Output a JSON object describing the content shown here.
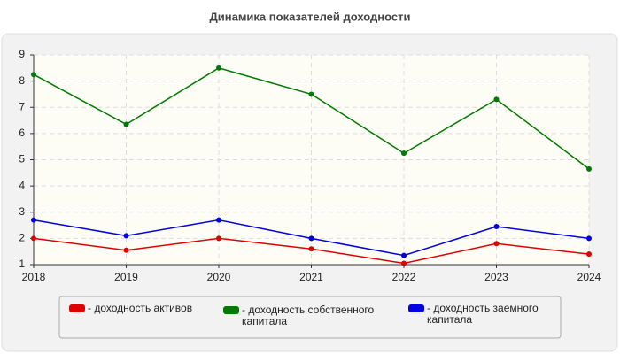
{
  "chart_data": {
    "type": "line",
    "title": "Динамика показателей доходности",
    "categories": [
      "2018",
      "2019",
      "2020",
      "2021",
      "2022",
      "2023",
      "2024"
    ],
    "series": [
      {
        "name": "- доходность активов",
        "color": "#e00000",
        "values": [
          2.0,
          1.55,
          2.0,
          1.6,
          1.05,
          1.8,
          1.4
        ]
      },
      {
        "name": "- доходность собственного капитала",
        "color": "#007a00",
        "values": [
          8.25,
          6.35,
          8.5,
          7.5,
          5.25,
          7.3,
          4.65
        ]
      },
      {
        "name": "- доходность заемного капитала",
        "color": "#0000e0",
        "values": [
          2.7,
          2.1,
          2.7,
          2.0,
          1.35,
          2.45,
          2.0
        ]
      }
    ],
    "ylim": [
      1,
      9
    ],
    "yticks": [
      1,
      2,
      3,
      4,
      5,
      6,
      7,
      8,
      9
    ],
    "grid": true
  }
}
